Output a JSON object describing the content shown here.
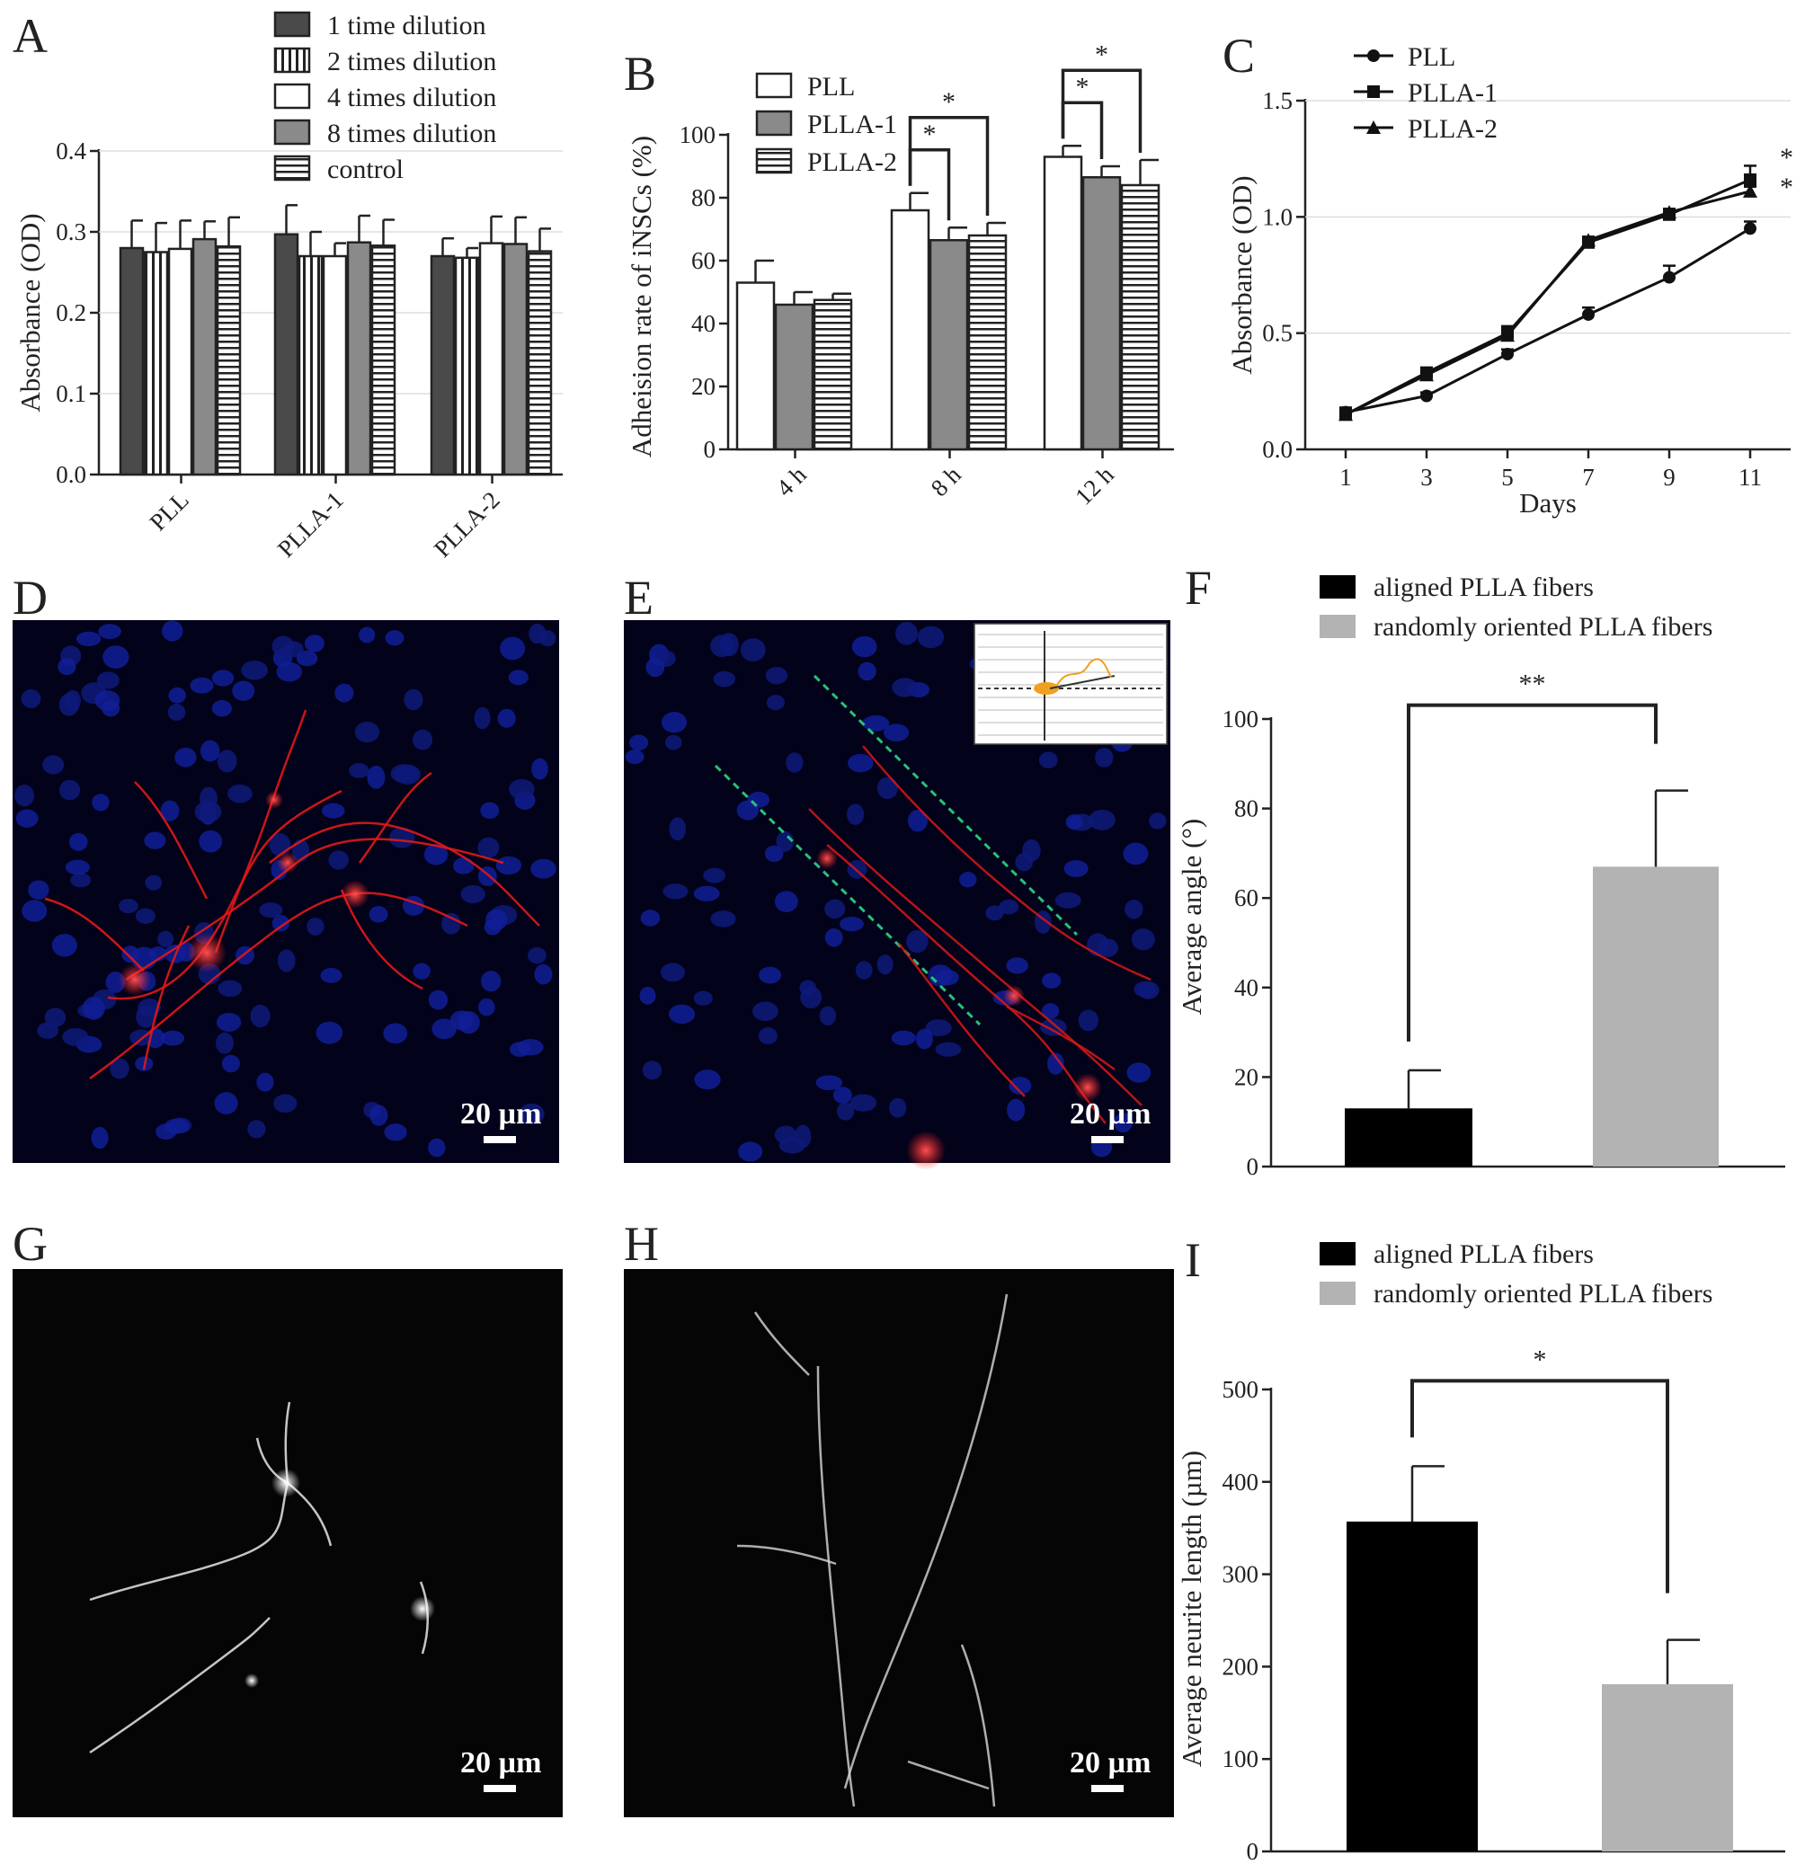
{
  "panels": [
    "A",
    "B",
    "C",
    "D",
    "E",
    "F",
    "G",
    "H",
    "I"
  ],
  "scale_bar": "20 µm",
  "colors": {
    "dark_gray": "#4a4a4a",
    "mid_gray": "#8a8a8a",
    "white": "#ffffff",
    "black": "#000000",
    "light_gray": "#b3b3b3",
    "grid": "#dddddd",
    "dash_line": "#28c07a"
  },
  "chart_data": [
    {
      "id": "A",
      "type": "bar",
      "title": "",
      "xlabel": "",
      "ylabel": "Absorbance (OD)",
      "ylim": [
        0,
        0.4
      ],
      "yticks": [
        "0.0",
        "0.1",
        "0.2",
        "0.3",
        "0.4"
      ],
      "grid": true,
      "legend_position": "top",
      "categories": [
        "PLL",
        "PLLA-1",
        "PLLA-2"
      ],
      "series": [
        {
          "name": "1 time dilution",
          "fill": "#4a4a4a",
          "pattern": "solid",
          "values": [
            0.28,
            0.297,
            0.27
          ],
          "errors": [
            0.034,
            0.036,
            0.022
          ]
        },
        {
          "name": "2 times dilution",
          "fill": "#ffffff",
          "pattern": "vertical",
          "values": [
            0.275,
            0.27,
            0.268
          ],
          "errors": [
            0.036,
            0.03,
            0.012
          ]
        },
        {
          "name": "4 times dilution",
          "fill": "#ffffff",
          "pattern": "solid",
          "values": [
            0.279,
            0.27,
            0.286
          ],
          "errors": [
            0.035,
            0.016,
            0.033
          ]
        },
        {
          "name": "8 times dilution",
          "fill": "#8a8a8a",
          "pattern": "solid",
          "values": [
            0.291,
            0.287,
            0.285
          ],
          "errors": [
            0.022,
            0.033,
            0.033
          ]
        },
        {
          "name": "control",
          "fill": "#ffffff",
          "pattern": "horizontal",
          "values": [
            0.282,
            0.283,
            0.276
          ],
          "errors": [
            0.036,
            0.032,
            0.028
          ]
        }
      ]
    },
    {
      "id": "B",
      "type": "bar",
      "title": "",
      "xlabel": "",
      "ylabel": "Adheision rate of iNSCs (%)",
      "ylim": [
        0,
        100
      ],
      "yticks": [
        "0",
        "20",
        "40",
        "60",
        "80",
        "100"
      ],
      "grid": false,
      "legend_position": "top-left",
      "categories": [
        "4 h",
        "8 h",
        "12 h"
      ],
      "series": [
        {
          "name": "PLL",
          "fill": "#ffffff",
          "pattern": "solid",
          "values": [
            53,
            76,
            93
          ],
          "errors": [
            7,
            5.5,
            3.5
          ]
        },
        {
          "name": "PLLA-1",
          "fill": "#8a8a8a",
          "pattern": "solid",
          "values": [
            46,
            66.5,
            86.5
          ],
          "errors": [
            4,
            4,
            3.5
          ]
        },
        {
          "name": "PLLA-2",
          "fill": "#ffffff",
          "pattern": "horizontal",
          "values": [
            47.5,
            68,
            84
          ],
          "errors": [
            2,
            4,
            8
          ]
        }
      ],
      "significance": [
        {
          "category": "8 h",
          "from": 0,
          "to": 1,
          "label": "*"
        },
        {
          "category": "8 h",
          "from": 0,
          "to": 2,
          "label": "*"
        },
        {
          "category": "12 h",
          "from": 0,
          "to": 1,
          "label": "*"
        },
        {
          "category": "12 h",
          "from": 0,
          "to": 2,
          "label": "*"
        }
      ]
    },
    {
      "id": "C",
      "type": "line",
      "title": "",
      "xlabel": "Days",
      "ylabel": "Absorbance (OD)",
      "ylim": [
        0,
        1.5
      ],
      "xlim": [
        0,
        12
      ],
      "yticks": [
        "0.0",
        "0.5",
        "1.0",
        "1.5"
      ],
      "xticks": [
        "1",
        "3",
        "5",
        "7",
        "9",
        "11"
      ],
      "x": [
        1,
        3,
        5,
        7,
        9,
        11
      ],
      "grid": true,
      "legend_position": "top-left",
      "series": [
        {
          "name": "PLL",
          "marker": "circle",
          "values": [
            0.16,
            0.23,
            0.41,
            0.58,
            0.74,
            0.95
          ],
          "errors": [
            0.02,
            0.015,
            0.02,
            0.03,
            0.05,
            0.03
          ]
        },
        {
          "name": "PLLA-1",
          "marker": "square",
          "values": [
            0.15,
            0.33,
            0.5,
            0.89,
            1.01,
            1.16
          ],
          "errors": [
            0.02,
            0.02,
            0.03,
            0.015,
            0.02,
            0.06
          ]
        },
        {
          "name": "PLLA-2",
          "marker": "triangle",
          "values": [
            0.15,
            0.32,
            0.49,
            0.9,
            1.02,
            1.11
          ],
          "errors": [
            0.02,
            0.015,
            0.02,
            0.015,
            0.015,
            0.02
          ]
        }
      ],
      "annotations": [
        "*",
        "*"
      ]
    },
    {
      "id": "F",
      "type": "bar",
      "title": "",
      "xlabel": "",
      "ylabel": "Average angle (°)",
      "ylim": [
        0,
        100
      ],
      "yticks": [
        "0",
        "20",
        "40",
        "60",
        "80",
        "100"
      ],
      "grid": false,
      "legend_position": "top",
      "categories": [
        "aligned PLLA fibers",
        "randomly oriented PLLA fibers"
      ],
      "values": [
        13,
        67
      ],
      "errors": [
        8.5,
        17
      ],
      "fills": [
        "#000000",
        "#b3b3b3"
      ],
      "significance": "**"
    },
    {
      "id": "I",
      "type": "bar",
      "title": "",
      "xlabel": "",
      "ylabel": "Average neurite length (µm)",
      "ylim": [
        0,
        500
      ],
      "yticks": [
        "0",
        "100",
        "200",
        "300",
        "400",
        "500"
      ],
      "grid": false,
      "legend_position": "top",
      "categories": [
        "aligned PLLA fibers",
        "randomly oriented PLLA fibers"
      ],
      "values": [
        357,
        181
      ],
      "errors": [
        60,
        48
      ],
      "fills": [
        "#000000",
        "#b3b3b3"
      ],
      "significance": "*"
    }
  ]
}
